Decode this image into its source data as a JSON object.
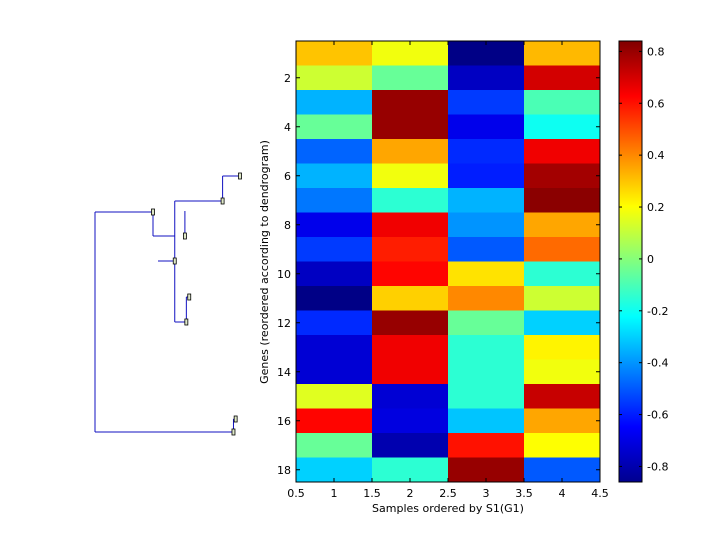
{
  "chart_data": {
    "type": "heatmap",
    "title": "",
    "xlabel": "Samples ordered by S1(G1)",
    "ylabel": "Genes (reordered according to dendrogram)",
    "x_ticks": [
      0.5,
      1,
      1.5,
      2,
      2.5,
      3,
      3.5,
      4,
      4.5
    ],
    "x_tick_labels": [
      "0.5",
      "1",
      "1.5",
      "2",
      "2.5",
      "3",
      "3.5",
      "4",
      "4.5"
    ],
    "xlim": [
      0.5,
      4.5
    ],
    "y_ticks": [
      2,
      4,
      6,
      8,
      10,
      12,
      14,
      16,
      18
    ],
    "y_tick_labels": [
      "2",
      "4",
      "6",
      "8",
      "10",
      "12",
      "14",
      "16",
      "18"
    ],
    "ylim": [
      0.5,
      18.5
    ],
    "rows": 18,
    "cols": 4,
    "values": [
      [
        0.3,
        0.18,
        -0.85,
        0.32
      ],
      [
        0.12,
        -0.05,
        -0.75,
        0.7
      ],
      [
        -0.35,
        0.8,
        -0.55,
        -0.1
      ],
      [
        -0.05,
        0.8,
        -0.68,
        -0.2
      ],
      [
        -0.48,
        0.35,
        -0.58,
        0.65
      ],
      [
        -0.35,
        0.18,
        -0.6,
        0.78
      ],
      [
        -0.45,
        -0.15,
        -0.35,
        0.82
      ],
      [
        -0.68,
        0.65,
        -0.4,
        0.35
      ],
      [
        -0.55,
        0.58,
        -0.5,
        0.45
      ],
      [
        -0.75,
        0.62,
        0.25,
        -0.15
      ],
      [
        -0.85,
        0.28,
        0.4,
        0.12
      ],
      [
        -0.58,
        0.8,
        -0.05,
        -0.3
      ],
      [
        -0.72,
        0.65,
        -0.15,
        0.22
      ],
      [
        -0.72,
        0.65,
        -0.15,
        0.18
      ],
      [
        0.15,
        -0.72,
        -0.15,
        0.72
      ],
      [
        0.62,
        -0.7,
        -0.32,
        0.35
      ],
      [
        -0.05,
        -0.78,
        0.6,
        0.2
      ],
      [
        -0.3,
        -0.15,
        0.8,
        -0.5
      ]
    ],
    "colorbar": {
      "colormap": "jet",
      "range": [
        -0.86,
        0.84
      ],
      "ticks": [
        0.8,
        0.6,
        0.4,
        0.2,
        0,
        -0.2,
        -0.4,
        -0.6,
        -0.8
      ],
      "tick_labels": [
        "0.8",
        "0.6",
        "0.4",
        "0.2",
        "0",
        "-0.2",
        "-0.4",
        "-0.6",
        "-0.8"
      ]
    },
    "dendrogram": {
      "orientation": "left",
      "leaves_top_to_bottom": 18,
      "node_heights": [
        0.0,
        0.12,
        0.38,
        0.45,
        0.6,
        0.35,
        0.37,
        0.03,
        0.045,
        1.0
      ]
    }
  }
}
